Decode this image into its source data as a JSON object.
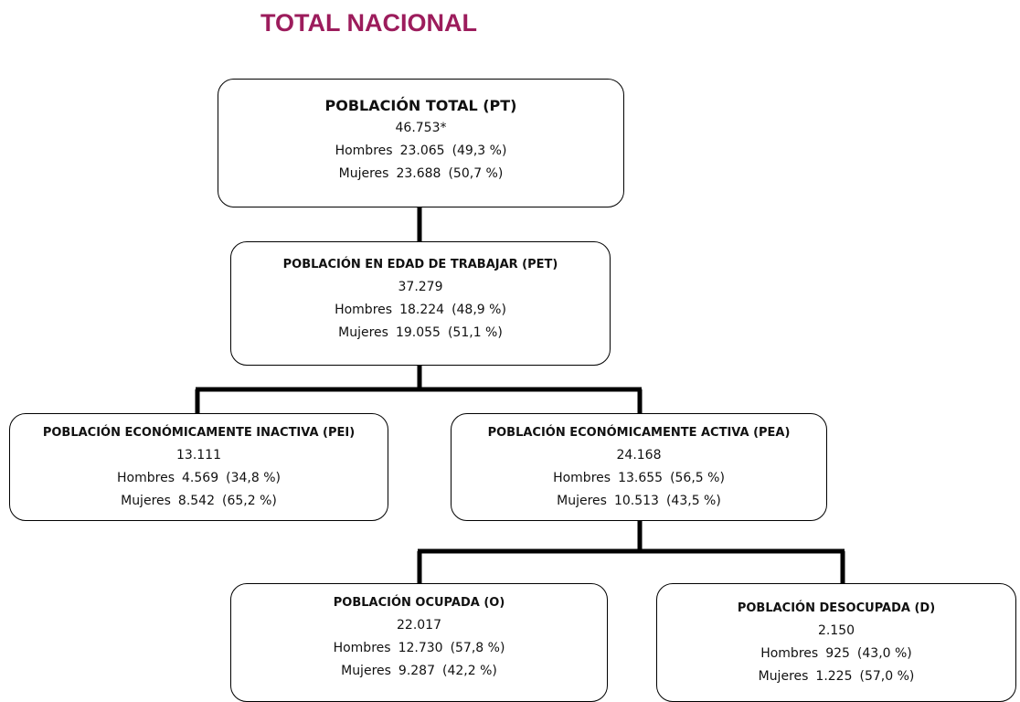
{
  "header": {
    "title": "TOTAL NACIONAL"
  },
  "nodes": [
    {
      "title": "POBLACIÓN TOTAL (PT)",
      "total": "46.753*",
      "rows": [
        {
          "label": "Hombres",
          "value": "23.065",
          "pct": "(49,3 %)"
        },
        {
          "label": "Mujeres",
          "value": "23.688",
          "pct": "(50,7 %)"
        }
      ]
    },
    {
      "title": "POBLACIÓN EN EDAD DE TRABAJAR (PET)",
      "total": "37.279",
      "rows": [
        {
          "label": "Hombres",
          "value": "18.224",
          "pct": "(48,9 %)"
        },
        {
          "label": "Mujeres",
          "value": "19.055",
          "pct": "(51,1 %)"
        }
      ]
    },
    {
      "title": "POBLACIÓN ECONÓMICAMENTE INACTIVA (PEI)",
      "total": "13.111",
      "rows": [
        {
          "label": "Hombres",
          "value": "4.569",
          "pct": "(34,8 %)"
        },
        {
          "label": "Mujeres",
          "value": "8.542",
          "pct": "(65,2 %)"
        }
      ]
    },
    {
      "title": "POBLACIÓN ECONÓMICAMENTE ACTIVA (PEA)",
      "total": "24.168",
      "rows": [
        {
          "label": "Hombres",
          "value": "13.655",
          "pct": "(56,5 %)"
        },
        {
          "label": "Mujeres",
          "value": "10.513",
          "pct": "(43,5 %)"
        }
      ]
    },
    {
      "title": "POBLACIÓN OCUPADA (O)",
      "total": "22.017",
      "rows": [
        {
          "label": "Hombres",
          "value": "12.730",
          "pct": "(57,8 %)"
        },
        {
          "label": "Mujeres",
          "value": "9.287",
          "pct": "(42,2 %)"
        }
      ]
    },
    {
      "title": "POBLACIÓN DESOCUPADA (D)",
      "total": "2.150",
      "rows": [
        {
          "label": "Hombres",
          "value": "925",
          "pct": "(43,0 %)"
        },
        {
          "label": "Mujeres",
          "value": "1.225",
          "pct": "(57,0 %)"
        }
      ]
    }
  ]
}
